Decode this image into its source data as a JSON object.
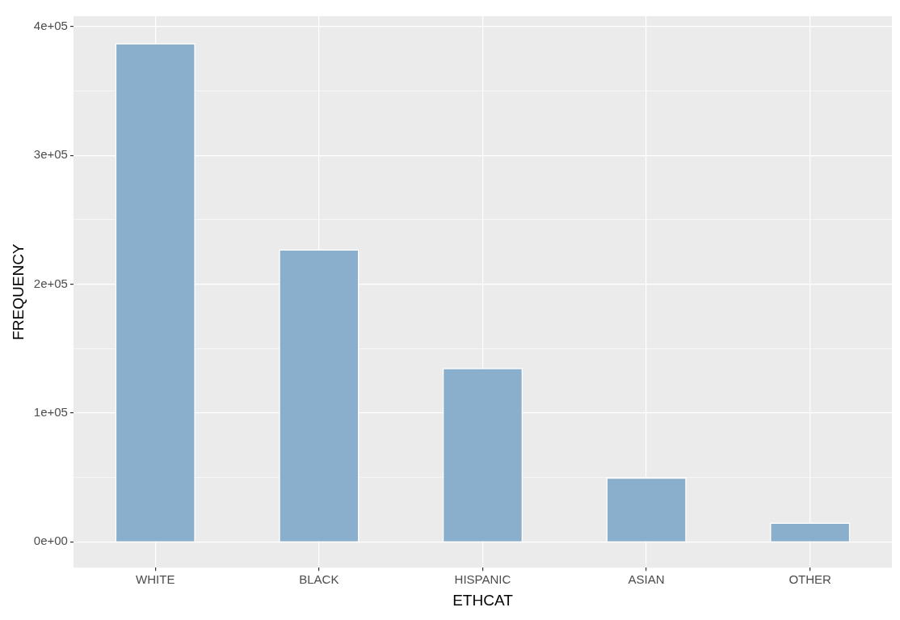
{
  "chart_data": {
    "type": "bar",
    "xlabel": "ETHCAT",
    "ylabel": "FREQUENCY",
    "categories": [
      "WHITE",
      "BLACK",
      "HISPANIC",
      "ASIAN",
      "OTHER"
    ],
    "values": [
      387000,
      227000,
      135000,
      50000,
      15000
    ],
    "color": "#8aafcd",
    "ylim": [
      -20000,
      408000
    ],
    "yticks": [
      {
        "value": 0,
        "label": "0e+00"
      },
      {
        "value": 50000,
        "label": null
      },
      {
        "value": 100000,
        "label": "1e+05"
      },
      {
        "value": 150000,
        "label": null
      },
      {
        "value": 200000,
        "label": "2e+05"
      },
      {
        "value": 250000,
        "label": null
      },
      {
        "value": 300000,
        "label": "3e+05"
      },
      {
        "value": 350000,
        "label": null
      },
      {
        "value": 400000,
        "label": "4e+05"
      }
    ],
    "grid": true,
    "legend": false
  }
}
